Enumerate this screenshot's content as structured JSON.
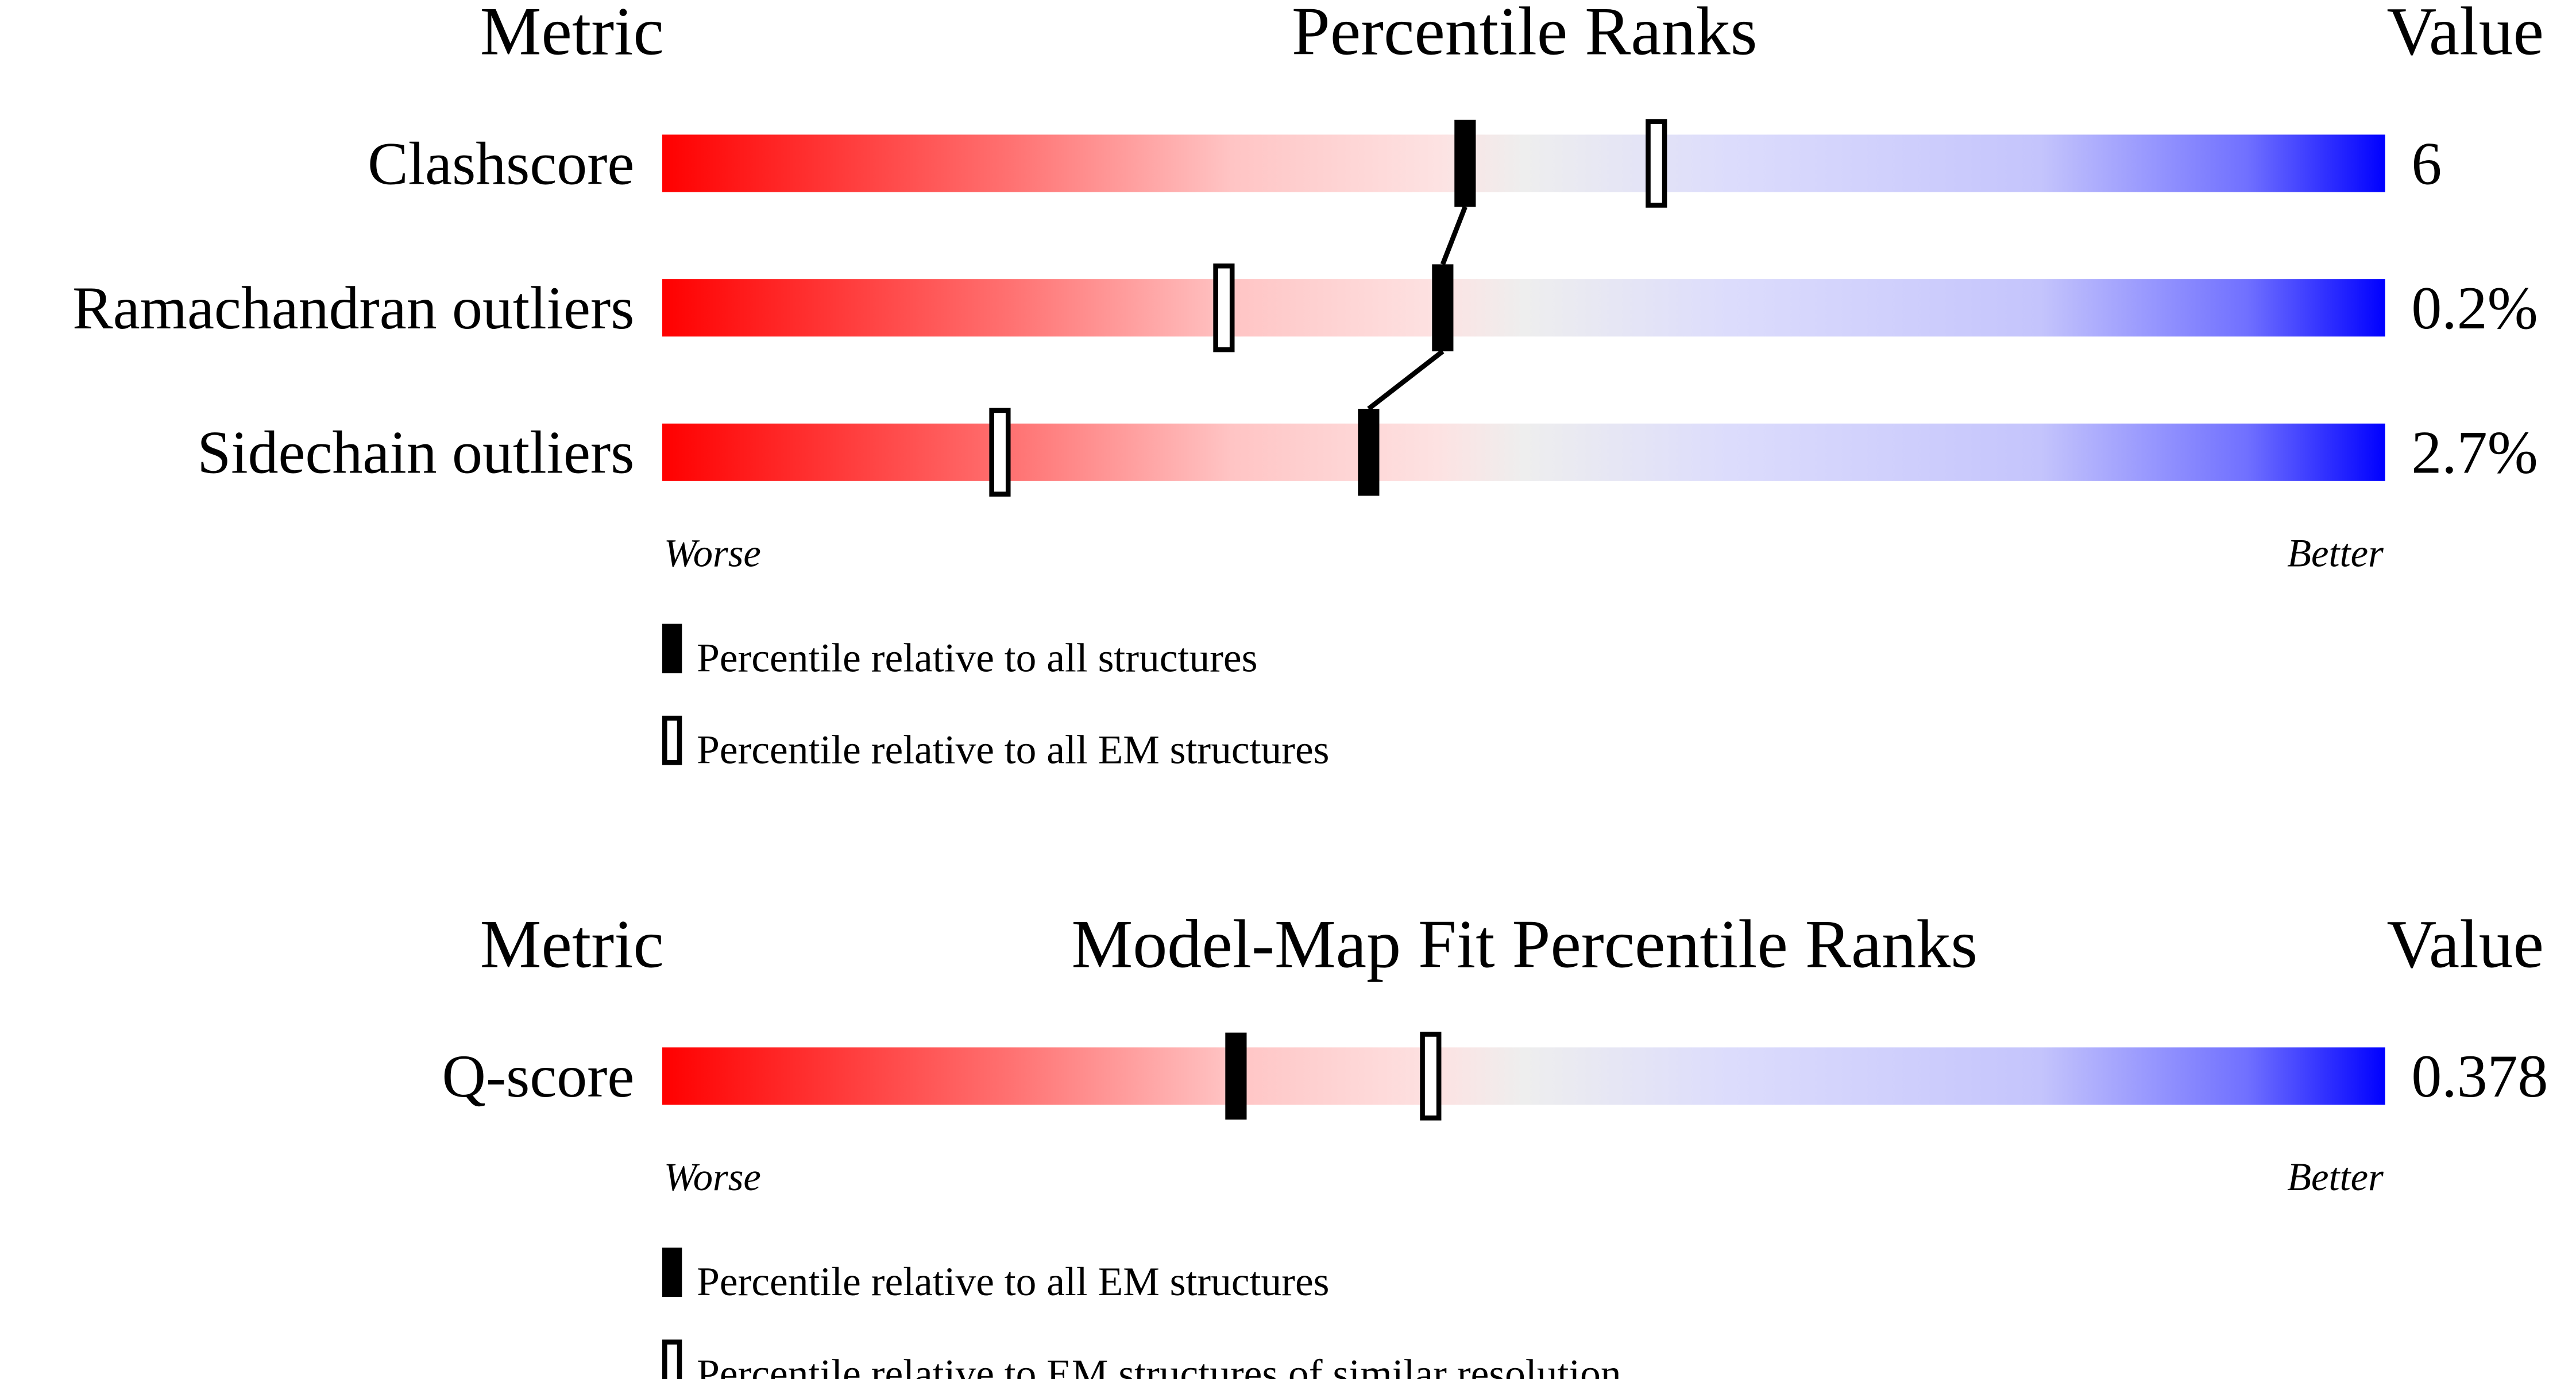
{
  "chart_data": [
    {
      "type": "percentile-slider",
      "header": {
        "metric": "Metric",
        "title": "Percentile Ranks",
        "value": "Value"
      },
      "rows": [
        {
          "label": "Clashscore",
          "value": "6",
          "percentile_all": 46.6,
          "percentile_em": 57.7
        },
        {
          "label": "Ramachandran outliers",
          "value": "0.2%",
          "percentile_all": 45.3,
          "percentile_em": 32.6
        },
        {
          "label": "Sidechain outliers",
          "value": "2.7%",
          "percentile_all": 41.0,
          "percentile_em": 19.6
        }
      ],
      "axis": {
        "left": "Worse",
        "right": "Better",
        "range": [
          0,
          100
        ]
      },
      "legend": {
        "filled": "Percentile relative to all structures",
        "hollow": "Percentile relative to all EM structures"
      },
      "connect_filled_markers": true
    },
    {
      "type": "percentile-slider",
      "header": {
        "metric": "Metric",
        "title": "Model-Map Fit Percentile Ranks",
        "value": "Value"
      },
      "rows": [
        {
          "label": "Q-score",
          "value": "0.378",
          "percentile_all": 33.3,
          "percentile_em": 44.6
        }
      ],
      "axis": {
        "left": "Worse",
        "right": "Better",
        "range": [
          0,
          100
        ]
      },
      "legend": {
        "filled": "Percentile relative to all EM structures",
        "hollow": "Percentile relative to EM structures of similar resolution"
      },
      "connect_filled_markers": false
    }
  ],
  "colors": {
    "worse": "#ff0000",
    "middle": "#eeeeee",
    "better": "#0000ff"
  }
}
